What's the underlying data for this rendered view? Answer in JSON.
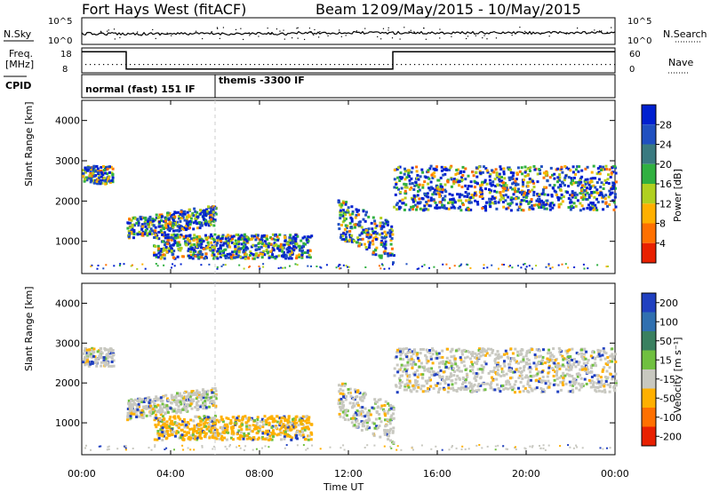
{
  "header": {
    "title": "Fort Hays West (fitACF)",
    "beam": "Beam 12",
    "date_range": "09/May/2015 - 10/May/2015"
  },
  "strip": {
    "nsky_label": "N.Sky",
    "nsky_ticks": [
      "10^5",
      "10^0"
    ],
    "nsearch_label": "N.Search",
    "nsearch_ticks": [
      "10^5",
      "10^0"
    ],
    "freq_label_1": "Freq.",
    "freq_label_2": "[MHz]",
    "freq_ticks": [
      "18",
      "8"
    ],
    "nave_label": "Nave",
    "nave_ticks": [
      "60",
      "0"
    ],
    "cpid_label": "CPID",
    "cpid_segments": [
      {
        "start": 0,
        "end": 6,
        "label": "normal (fast) 151 IF"
      },
      {
        "start": 6,
        "end": 24,
        "label": "themis -3300 IF"
      }
    ],
    "freq_steps": [
      {
        "start": 0,
        "end": 2,
        "level": 0.85
      },
      {
        "start": 2,
        "end": 14,
        "level": 0.15
      },
      {
        "start": 14,
        "end": 24,
        "level": 0.85
      }
    ]
  },
  "chart_data": [
    {
      "type": "heatmap",
      "name": "power",
      "ylabel": "Slant Range [km]",
      "ylim": [
        200,
        4500
      ],
      "yticks": [
        1000,
        2000,
        3000,
        4000
      ],
      "colorbar_label": "Power [dB]",
      "colorbar_ticks": [
        "28",
        "24",
        "20",
        "16",
        "12",
        "8",
        "4"
      ],
      "colors": [
        "#0020d0",
        "#2050c0",
        "#3a7a80",
        "#30b040",
        "#b0d020",
        "#ffb000",
        "#ff7000",
        "#e82000"
      ]
    },
    {
      "type": "heatmap",
      "name": "velocity",
      "ylabel": "Slant Range [km]",
      "ylim": [
        200,
        4500
      ],
      "yticks": [
        1000,
        2000,
        3000,
        4000
      ],
      "colorbar_label": "Velocity [m s⁻¹]",
      "colorbar_ticks": [
        "200",
        "100",
        "50",
        "15",
        "-15",
        "-50",
        "-100",
        "-200"
      ],
      "colors": [
        "#2040c0",
        "#3070b0",
        "#3a8060",
        "#70c040",
        "#c8c8c0",
        "#ffb000",
        "#ff7000",
        "#e82000"
      ]
    }
  ],
  "xaxis": {
    "label": "Time UT",
    "ticks": [
      "00:00",
      "04:00",
      "08:00",
      "12:00",
      "16:00",
      "20:00",
      "00:00"
    ]
  }
}
